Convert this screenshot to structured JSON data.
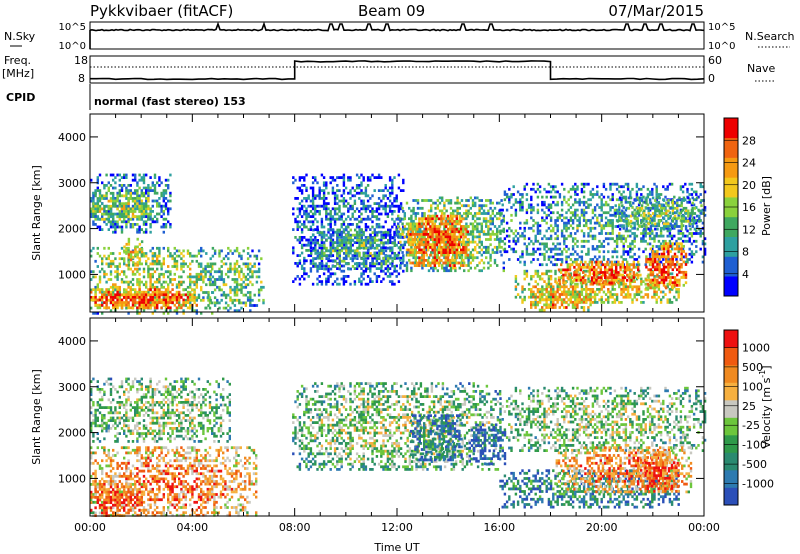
{
  "header": {
    "station": "Pykkvibaer (fitACF)",
    "beam": "Beam 09",
    "date": "07/Mar/2015"
  },
  "sky_panel": {
    "left_label": "N.Sky",
    "right_label": "N.Search",
    "left_ticks": [
      "10^5",
      "10^0"
    ],
    "right_ticks": [
      "10^5",
      "10^0"
    ],
    "spikes_hours": [
      5.0,
      6.8,
      9.4,
      9.8,
      10.9,
      11.6,
      14.6,
      15.7,
      21.0,
      21.7,
      22.3,
      23.6
    ]
  },
  "freq_panel": {
    "left_label": "Freq.",
    "left_unit": "[MHz]",
    "right_label": "Nave",
    "left_ticks": [
      "18",
      "8"
    ],
    "right_ticks": [
      "60",
      "0"
    ],
    "freq_steps": [
      {
        "from": 0,
        "to": 8,
        "level": 0.85
      },
      {
        "from": 8,
        "to": 18,
        "level": 0.2
      },
      {
        "from": 18,
        "to": 24,
        "level": 0.85
      }
    ]
  },
  "cpid": {
    "label": "CPID",
    "mode": "normal (fast stereo) 153"
  },
  "chart_data": [
    {
      "type": "heatmap",
      "name": "power",
      "ylabel": "Slant Range [km]",
      "xlabel": "",
      "x_range_hours": [
        0,
        24
      ],
      "ylim": [
        180,
        4500
      ],
      "y_ticks": [
        "1000",
        "2000",
        "3000",
        "4000"
      ],
      "colorbar": {
        "label": "Power [dB]",
        "ticks": [
          "4",
          "8",
          "12",
          "16",
          "20",
          "24",
          "28"
        ],
        "colors": [
          "#0000ff",
          "#1f5fd2",
          "#2ea0a0",
          "#3fa860",
          "#8ad13c",
          "#f2c81c",
          "#f59a12",
          "#f06410",
          "#ee0000"
        ]
      },
      "regions": [
        {
          "t0": 0.0,
          "t1": 3.1,
          "r0": 1900,
          "r1": 3200,
          "dens": 0.55,
          "v": 0.35
        },
        {
          "t0": 0.0,
          "t1": 2.4,
          "r0": 2200,
          "r1": 2800,
          "dens": 0.65,
          "v": 0.55
        },
        {
          "t0": 0.0,
          "t1": 4.8,
          "r0": 180,
          "r1": 1600,
          "dens": 0.5,
          "v": 0.55
        },
        {
          "t0": 0.0,
          "t1": 4.2,
          "r0": 250,
          "r1": 700,
          "dens": 0.8,
          "v": 0.85
        },
        {
          "t0": 1.3,
          "t1": 2.0,
          "r0": 1200,
          "r1": 1800,
          "dens": 0.6,
          "v": 0.7
        },
        {
          "t0": 4.5,
          "t1": 6.8,
          "r0": 200,
          "r1": 1600,
          "dens": 0.45,
          "v": 0.45
        },
        {
          "t0": 7.9,
          "t1": 12.2,
          "r0": 800,
          "r1": 3200,
          "dens": 0.5,
          "v": 0.25
        },
        {
          "t0": 8.6,
          "t1": 12.0,
          "r0": 1100,
          "r1": 2000,
          "dens": 0.6,
          "v": 0.4
        },
        {
          "t0": 12.0,
          "t1": 16.2,
          "r0": 1100,
          "r1": 2700,
          "dens": 0.6,
          "v": 0.5
        },
        {
          "t0": 12.4,
          "t1": 14.8,
          "r0": 1200,
          "r1": 2300,
          "dens": 0.8,
          "v": 0.85
        },
        {
          "t0": 16.0,
          "t1": 24.0,
          "r0": 1200,
          "r1": 3000,
          "dens": 0.45,
          "v": 0.35
        },
        {
          "t0": 16.6,
          "t1": 23.0,
          "r0": 400,
          "r1": 1100,
          "dens": 0.6,
          "v": 0.65
        },
        {
          "t0": 18.2,
          "t1": 21.5,
          "r0": 800,
          "r1": 1300,
          "dens": 0.75,
          "v": 0.85
        },
        {
          "t0": 21.7,
          "t1": 23.3,
          "r0": 700,
          "r1": 1700,
          "dens": 0.7,
          "v": 0.88
        },
        {
          "t0": 17.2,
          "t1": 19.6,
          "r0": 250,
          "r1": 650,
          "dens": 0.7,
          "v": 0.75
        },
        {
          "t0": 20.5,
          "t1": 24.0,
          "r0": 2000,
          "r1": 2700,
          "dens": 0.6,
          "v": 0.45
        }
      ]
    },
    {
      "type": "heatmap",
      "name": "velocity",
      "ylabel": "Slant Range [km]",
      "xlabel": "Time UT",
      "x_range_hours": [
        0,
        24
      ],
      "x_ticks": [
        "00:00",
        "04:00",
        "08:00",
        "12:00",
        "16:00",
        "20:00",
        "00:00"
      ],
      "ylim": [
        180,
        4500
      ],
      "y_ticks": [
        "1000",
        "2000",
        "3000",
        "4000"
      ],
      "colorbar": {
        "label": "Velocity [m s",
        "label_sup": "-1",
        "label_end": "]",
        "ticks": [
          "1000",
          "500",
          "100",
          "25",
          "-25",
          "-100",
          "-500",
          "-1000"
        ],
        "colors": [
          "#2b4fb8",
          "#2d7ab0",
          "#2a8a70",
          "#2f9a4a",
          "#6cc63c",
          "#c8c8c0",
          "#f6b040",
          "#f08a20",
          "#f05a10",
          "#ee1010"
        ]
      },
      "regions": [
        {
          "t0": 0.0,
          "t1": 5.5,
          "r0": 1800,
          "r1": 3200,
          "dens": 0.5,
          "v": 0.5
        },
        {
          "t0": 0.0,
          "t1": 6.5,
          "r0": 180,
          "r1": 1700,
          "dens": 0.55,
          "v": 0.78
        },
        {
          "t0": 0.0,
          "t1": 2.0,
          "r0": 200,
          "r1": 900,
          "dens": 0.7,
          "v": 0.9
        },
        {
          "t0": 7.9,
          "t1": 16.0,
          "r0": 1200,
          "r1": 3100,
          "dens": 0.5,
          "v": 0.5
        },
        {
          "t0": 12.5,
          "t1": 14.5,
          "r0": 1400,
          "r1": 2400,
          "dens": 0.6,
          "v": 0.25
        },
        {
          "t0": 16.0,
          "t1": 24.0,
          "r0": 1600,
          "r1": 3000,
          "dens": 0.5,
          "v": 0.5
        },
        {
          "t0": 16.0,
          "t1": 23.0,
          "r0": 400,
          "r1": 1200,
          "dens": 0.55,
          "v": 0.3
        },
        {
          "t0": 18.2,
          "t1": 23.5,
          "r0": 700,
          "r1": 1700,
          "dens": 0.55,
          "v": 0.78
        },
        {
          "t0": 21.5,
          "t1": 23.0,
          "r0": 700,
          "r1": 1600,
          "dens": 0.7,
          "v": 0.88
        },
        {
          "t0": 14.8,
          "t1": 16.2,
          "r0": 1300,
          "r1": 2200,
          "dens": 0.5,
          "v": 0.15
        }
      ]
    }
  ]
}
